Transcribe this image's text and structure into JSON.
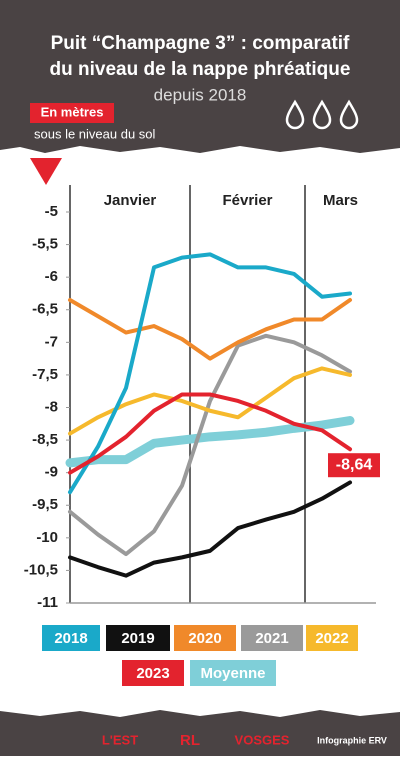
{
  "chart_data": {
    "type": "line",
    "title": [
      "Puit “Champagne 3” : comparatif",
      "du niveau de la nappe phréatique"
    ],
    "subtitle": "depuis 2018",
    "unit_label": "En mètres",
    "unit_note": "sous le niveau du sol",
    "months": [
      "Janvier",
      "Février",
      "Mars"
    ],
    "categories": [
      null,
      null,
      null,
      null,
      null,
      null,
      null,
      null,
      null,
      null,
      null
    ],
    "ylim": [
      -11,
      -5
    ],
    "yticks": [
      -5,
      {
        "value": -5.5,
        "label": "-5,5"
      },
      -6,
      {
        "value": -6.5,
        "label": "-6,5"
      },
      -7,
      {
        "value": -7.5,
        "label": "-7,5"
      },
      -8,
      {
        "value": -8.5,
        "label": "-8,5"
      },
      -9,
      {
        "value": -9.5,
        "label": "-9,5"
      },
      -10,
      {
        "value": -10.5,
        "label": "-10,5"
      },
      -11
    ],
    "series": [
      {
        "name": "2018",
        "color": "#1aa9c9",
        "values": [
          -9.3,
          -8.6,
          -7.7,
          -5.85,
          -5.7,
          -5.65,
          -5.85,
          -5.85,
          -5.95,
          -6.3,
          -6.25
        ]
      },
      {
        "name": "2019",
        "color": "#111111",
        "values": [
          -10.3,
          -10.45,
          -10.58,
          -10.38,
          -10.3,
          -10.2,
          -9.85,
          -9.72,
          -9.6,
          -9.4,
          -9.15
        ]
      },
      {
        "name": "2020",
        "color": "#f0892a",
        "values": [
          -6.35,
          -6.6,
          -6.85,
          -6.75,
          -6.95,
          -7.25,
          -7.0,
          -6.8,
          -6.65,
          -6.65,
          -6.35
        ]
      },
      {
        "name": "2021",
        "color": "#9a9a9a",
        "values": [
          -9.6,
          -9.95,
          -10.25,
          -9.9,
          -9.2,
          -7.9,
          -7.05,
          -6.9,
          -7.0,
          -7.2,
          -7.45
        ]
      },
      {
        "name": "2022",
        "color": "#f6b92c",
        "values": [
          -8.4,
          -8.15,
          -7.95,
          -7.8,
          -7.9,
          -8.05,
          -8.15,
          -7.85,
          -7.55,
          -7.4,
          -7.5
        ]
      },
      {
        "name": "2023",
        "color": "#e3232e",
        "values": [
          -9.0,
          -8.75,
          -8.45,
          -8.05,
          -7.8,
          -7.8,
          -7.9,
          -8.05,
          -8.25,
          -8.35,
          -8.64
        ],
        "value_labels": [
          null,
          null,
          null,
          null,
          null,
          null,
          null,
          null,
          null,
          null,
          "-8,64"
        ]
      },
      {
        "name": "Moyenne",
        "color": "#7fcfd8",
        "values": [
          -8.85,
          -8.8,
          -8.8,
          -8.55,
          -8.5,
          -8.45,
          -8.42,
          -8.38,
          -8.32,
          -8.27,
          -8.2
        ]
      }
    ]
  },
  "footer": {
    "logos": [
      "L'EST",
      "RL",
      "VOSGES"
    ],
    "credit": "Infographie ERV"
  }
}
